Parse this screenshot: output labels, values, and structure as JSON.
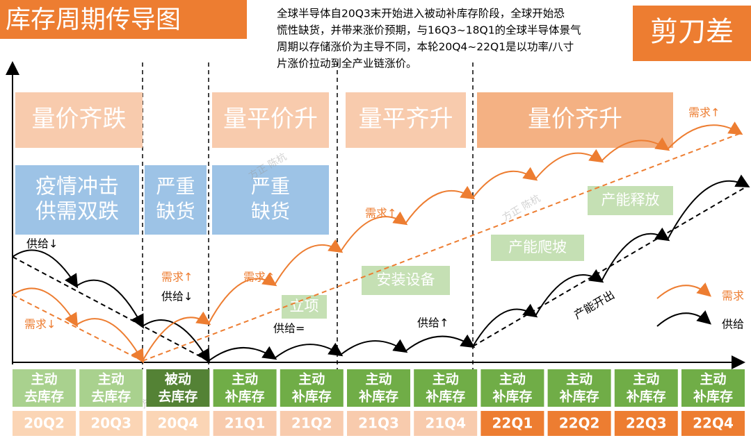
{
  "title": "库存周期传导图",
  "description": [
    "全球半导体自20Q3末开始进入被动补库存阶段，全球开始恐",
    "慌性缺货，并带来涨价预期，与16Q3~18Q1的全球半导体景气",
    "周期以存储涨价为主导不同，本轮20Q4~22Q1是以功率/八寸",
    "片涨价拉动到全产业链涨价。"
  ],
  "badge": "剪刀差",
  "phases": [
    "量价齐跌",
    "量平价升",
    "量平齐升",
    "量价齐升"
  ],
  "events": [
    [
      "疫情冲击",
      "供需双跌"
    ],
    [
      "严重",
      "缺货"
    ],
    [
      "严重",
      "缺货"
    ]
  ],
  "milestones": [
    "立项",
    "安装设备",
    "产能爬坡",
    "产能释放"
  ],
  "labels": [
    "供给↓",
    "需求↓",
    "需求↑",
    "供给↓",
    "需求↑",
    "供给=",
    "需求↑",
    "供给↑",
    "需求↑"
  ],
  "capacity_out": "产能开出",
  "legend": [
    "需求",
    "供给"
  ],
  "watermarks": [
    "方正 陈杭",
    "方正 陈杭",
    "方正 陈杭"
  ],
  "timeline": [
    {
      "state": [
        "主动",
        "去库存"
      ],
      "quarter": "20Q2"
    },
    {
      "state": [
        "主动",
        "去库存"
      ],
      "quarter": "20Q3"
    },
    {
      "state": [
        "被动",
        "去库存"
      ],
      "quarter": "20Q4"
    },
    {
      "state": [
        "主动",
        "补库存"
      ],
      "quarter": "21Q1"
    },
    {
      "state": [
        "主动",
        "补库存"
      ],
      "quarter": "21Q2"
    },
    {
      "state": [
        "主动",
        "补库存"
      ],
      "quarter": "21Q3"
    },
    {
      "state": [
        "主动",
        "补库存"
      ],
      "quarter": "21Q4"
    },
    {
      "state": [
        "主动",
        "补库存"
      ],
      "quarter": "22Q1"
    },
    {
      "state": [
        "主动",
        "补库存"
      ],
      "quarter": "22Q2"
    },
    {
      "state": [
        "主动",
        "补库存"
      ],
      "quarter": "22Q3"
    },
    {
      "state": [
        "主动",
        "补库存"
      ],
      "quarter": "22Q4"
    }
  ]
}
